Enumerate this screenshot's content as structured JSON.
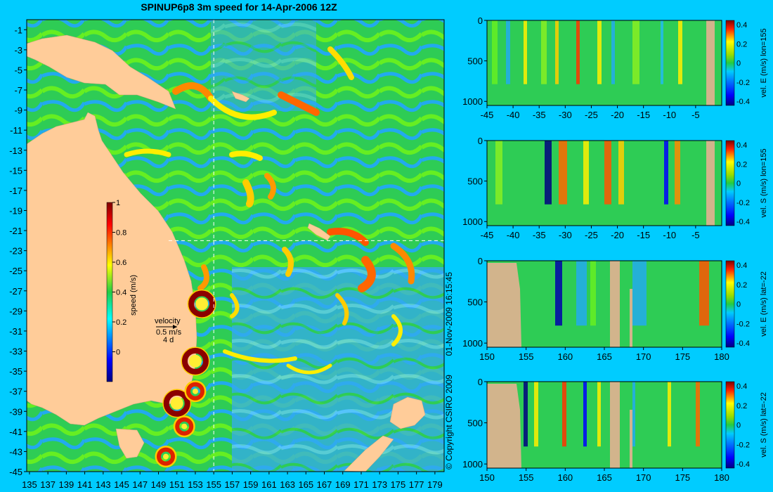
{
  "title": "SPINUP6p8 3m speed for 14-Apr-2006 12Z",
  "copyright": "© Copyright CSIRO 2009",
  "timestamp": "01-Nov-2009 16:15:45",
  "chart_data": [
    {
      "type": "heatmap",
      "name": "map",
      "x_ticks": [
        135,
        137,
        139,
        141,
        143,
        145,
        147,
        149,
        151,
        153,
        155,
        157,
        159,
        161,
        163,
        165,
        167,
        169,
        171,
        173,
        175,
        177,
        179
      ],
      "y_ticks": [
        -1,
        -3,
        -5,
        -7,
        -9,
        -11,
        -13,
        -15,
        -17,
        -19,
        -21,
        -23,
        -25,
        -27,
        -29,
        -31,
        -33,
        -35,
        -37,
        -39,
        -41,
        -43,
        -45
      ],
      "xlim": [
        134.7,
        180
      ],
      "ylim": [
        -45,
        0
      ],
      "section_lon": 155,
      "section_lat": -22,
      "colorbar": {
        "label": "speed (m/s)",
        "ticks": [
          1,
          0.8,
          0.6,
          0.4,
          0.2,
          0
        ],
        "range": [
          -0.2,
          1
        ]
      },
      "legend": {
        "title": "velocity",
        "value": "0.5 m/s",
        "days": "4 d"
      },
      "eddies": [
        {
          "lon": 153.7,
          "lat": -28.3,
          "speed": 1.0
        },
        {
          "lon": 153.0,
          "lat": -34.0,
          "speed": 1.0
        },
        {
          "lon": 151.0,
          "lat": -38.2,
          "speed": 1.0
        },
        {
          "lon": 153.0,
          "lat": -37.0,
          "speed": 0.7
        },
        {
          "lon": 151.8,
          "lat": -40.5,
          "speed": 0.7
        },
        {
          "lon": 149.8,
          "lat": -43.5,
          "speed": 0.6
        }
      ]
    },
    {
      "type": "heatmap",
      "name": "section-1",
      "x_ticks": [
        "-45",
        "-40",
        "-35",
        "-30",
        "-25",
        "-20",
        "-15",
        "-10",
        "-5"
      ],
      "xlim": [
        -45,
        0
      ],
      "y_ticks": [
        "0",
        "500",
        "1000"
      ],
      "ylim": [
        0,
        1050
      ],
      "colorbar": {
        "label": "vel. E (m/s) lon=155",
        "ticks": [
          "0.4",
          "0.2",
          "0",
          "-0.2",
          "-0.4"
        ]
      }
    },
    {
      "type": "heatmap",
      "name": "section-2",
      "x_ticks": [
        "-45",
        "-40",
        "-35",
        "-30",
        "-25",
        "-20",
        "-15",
        "-10",
        "-5"
      ],
      "xlim": [
        -45,
        0
      ],
      "y_ticks": [
        "0",
        "500",
        "1000"
      ],
      "ylim": [
        0,
        1050
      ],
      "colorbar": {
        "label": "vel. S (m/s) lon=155",
        "ticks": [
          "0.4",
          "0.2",
          "0",
          "-0.2",
          "-0.4"
        ]
      }
    },
    {
      "type": "heatmap",
      "name": "section-3",
      "x_ticks": [
        "150",
        "155",
        "160",
        "165",
        "170",
        "175",
        "180"
      ],
      "xlim": [
        150,
        180
      ],
      "y_ticks": [
        "0",
        "500",
        "1000"
      ],
      "ylim": [
        0,
        1050
      ],
      "colorbar": {
        "label": "vel. E (m/s) lat=-22",
        "ticks": [
          "0.4",
          "0.2",
          "0",
          "-0.2",
          "-0.4"
        ]
      }
    },
    {
      "type": "heatmap",
      "name": "section-4",
      "x_ticks": [
        "150",
        "155",
        "160",
        "165",
        "170",
        "175",
        "180"
      ],
      "xlim": [
        150,
        180
      ],
      "y_ticks": [
        "0",
        "500",
        "1000"
      ],
      "ylim": [
        0,
        1050
      ],
      "colorbar": {
        "label": "vel. S (m/s) lat=-22",
        "ticks": [
          "0.4",
          "0.2",
          "0",
          "-0.2",
          "-0.4"
        ]
      }
    }
  ]
}
